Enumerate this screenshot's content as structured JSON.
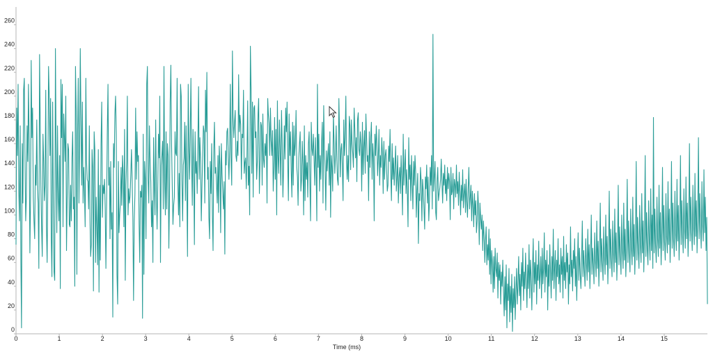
{
  "chart_data": {
    "type": "line",
    "title": "",
    "xlabel": "Time (ms)",
    "ylabel": "",
    "xlim": [
      0,
      16
    ],
    "ylim": [
      0,
      275
    ],
    "x_ticks": [
      "0",
      "1",
      "2",
      "3",
      "4",
      "5",
      "6",
      "7",
      "8",
      "9",
      "10",
      "11",
      "12",
      "13",
      "14",
      "15"
    ],
    "y_ticks": [
      "0",
      "20",
      "40",
      "60",
      "80",
      "100",
      "120",
      "140",
      "160",
      "180",
      "200",
      "220",
      "240",
      "260"
    ],
    "grid": false,
    "legend": "none",
    "colors": {
      "line": "#2a9d97",
      "axis": "#b4b4b4",
      "text": "#222222"
    },
    "series": [
      {
        "x_start": 0,
        "x_step": 0.016,
        "values": [
          75,
          190,
          150,
          210,
          120,
          95,
          175,
          60,
          5,
          160,
          110,
          205,
          215,
          150,
          95,
          115,
          175,
          145,
          210,
          160,
          68,
          115,
          230,
          165,
          190,
          115,
          95,
          80,
          142,
          125,
          180,
          122,
          110,
          55,
          235,
          175,
          125,
          90,
          65,
          168,
          145,
          112,
          125,
          205,
          90,
          60,
          125,
          225,
          200,
          150,
          198,
          80,
          48,
          195,
          110,
          52,
          45,
          240,
          150,
          85,
          175,
          115,
          95,
          150,
          38,
          214,
          165,
          210,
          90,
          185,
          165,
          145,
          200,
          70,
          115,
          160,
          155,
          92,
          90,
          125,
          95,
          148,
          170,
          105,
          115,
          40,
          225,
          188,
          50,
          168,
          215,
          110,
          162,
          240,
          180,
          125,
          195,
          110,
          140,
          120,
          90,
          215,
          145,
          130,
          128,
          105,
          175,
          95,
          65,
          75,
          155,
          140,
          36,
          170,
          155,
          60,
          115,
          90,
          58,
          155,
          35,
          125,
          62,
          160,
          195,
          98,
          125,
          118,
          130,
          105,
          55,
          110,
          170,
          210,
          125,
          140,
          80,
          145,
          88,
          102,
          14,
          160,
          140,
          185,
          200,
          168,
          50,
          25,
          145,
          85,
          100,
          110,
          140,
          108,
          150,
          135,
          90,
          172,
          45,
          125,
          145,
          200,
          100,
          122,
          110,
          116,
          133,
          155,
          130,
          98,
          28,
          95,
          118,
          190,
          130,
          170,
          145,
          150,
          92,
          60,
          120,
          115,
          125,
          13,
          168,
          50,
          145,
          130,
          80,
          210,
          225,
          130,
          110,
          175,
          145,
          128,
          90,
          112,
          60,
          165,
          125,
          100,
          180,
          120,
          88,
          125,
          168,
          148,
          200,
          60,
          142,
          150,
          162,
          105,
          225,
          128,
          100,
          170,
          105,
          160,
          150,
          72,
          112,
          195,
          226,
          160,
          124,
          92,
          108,
          115,
          170,
          152,
          150,
          215,
          128,
          100,
          135,
          90,
          210,
          200,
          130,
          95,
          142,
          148,
          178,
          112,
          175,
          125,
          65,
          210,
          158,
          130,
          168,
          215,
          145,
          108,
          172,
          140,
          75,
          170,
          135,
          145,
          118,
          160,
          208,
          130,
          165,
          145,
          95,
          125,
          150,
          175,
          170,
          110,
          205,
          170,
          220,
          130,
          140,
          98,
          80,
          145,
          118,
          160,
          100,
          70,
          155,
          178,
          135,
          140,
          125,
          110,
          150,
          102,
          158,
          142,
          85,
          160,
          135,
          120,
          105,
          128,
          67,
          154,
          142,
          170,
          173,
          148,
          130,
          155,
          210,
          148,
          125,
          238,
          182,
          165,
          178,
          188,
          150,
          145,
          162,
          150,
          218,
          170,
          184,
          176,
          130,
          168,
          165,
          205,
          135,
          144,
          148,
          122,
          150,
          196,
          125,
          141,
          100,
          242,
          205,
          135,
          195,
          115,
          190,
          192,
          165,
          170,
          130,
          145,
          185,
          198,
          118,
          145,
          178,
          175,
          125,
          185,
          147,
          140,
          160,
          150,
          168,
          110,
          198,
          185,
          177,
          150,
          190,
          163,
          150,
          171,
          120,
          140,
          182,
          130,
          172,
          100,
          196,
          150,
          135,
          180,
          155,
          125,
          188,
          160,
          115,
          140,
          175,
          147,
          190,
          170,
          195,
          145,
          112,
          185,
          150,
          170,
          138,
          115,
          178,
          125,
          175,
          150,
          160,
          188,
          140,
          132,
          108,
          148,
          160,
          170,
          120,
          130,
          162,
          142,
          100,
          175,
          112,
          150,
          130,
          144,
          115,
          160,
          170,
          128,
          95,
          178,
          156,
          150,
          168,
          148,
          125,
          165,
          140,
          95,
          210,
          140,
          168,
          120,
          150,
          130,
          162,
          178,
          110,
          192,
          155,
          140,
          104,
          154,
          137,
          150,
          160,
          125,
          170,
          98,
          150,
          140,
          120,
          185,
          162,
          135,
          150,
          175,
          145,
          130,
          125,
          198,
          168,
          132,
          155,
          160,
          140,
          112,
          180,
          150,
          165,
          200,
          145,
          130,
          150,
          128,
          183,
          175,
          138,
          180,
          160,
          152,
          140,
          190,
          172,
          148,
          165,
          128,
          180,
          186,
          155,
          150,
          170,
          160,
          120,
          178,
          134,
          158,
          171,
          135,
          185,
          165,
          145,
          150,
          112,
          170,
          140,
          165,
          178,
          130,
          160,
          148,
          95,
          168,
          150,
          175,
          160,
          133,
          148,
          172,
          125,
          150,
          140,
          165,
          152,
          118,
          162,
          130,
          150,
          155,
          140,
          120,
          125,
          158,
          145,
          172,
          135,
          112,
          160,
          130,
          148,
          125,
          140,
          158,
          120,
          130,
          150,
          110,
          132,
          140,
          118,
          150,
          130,
          100,
          168,
          125,
          140,
          155,
          118,
          138,
          120,
          90,
          165,
          130,
          142,
          112,
          150,
          128,
          105,
          145,
          125,
          150,
          136,
          98,
          120,
          135,
          76,
          118,
          112,
          140,
          128,
          95,
          130,
          120,
          105,
          88,
          132,
          122,
          142,
          110,
          132,
          95,
          112,
          140,
          125,
          150,
          105,
          252,
          120,
          132,
          145,
          102,
          96,
          128,
          140,
          112,
          118,
          123,
          130,
          147,
          128,
          110,
          135,
          125,
          142,
          118,
          130,
          112,
          140,
          122,
          135,
          128,
          96,
          140,
          117,
          120,
          135,
          105,
          130,
          125,
          115,
          142,
          118,
          128,
          108,
          136,
          120,
          100,
          125,
          112,
          138,
          106,
          118,
          126,
          102,
          130,
          112,
          98,
          122,
          140,
          105,
          115,
          125,
          95,
          120,
          108,
          90,
          118,
          100,
          112,
          85,
          95,
          120,
          105,
          75,
          110,
          98,
          88,
          100,
          70,
          95,
          82,
          60,
          78,
          90,
          58,
          75,
          62,
          88,
          50,
          80,
          42,
          70,
          60,
          35,
          65,
          38,
          72,
          55,
          48,
          68,
          30,
          60,
          45,
          58,
          25,
          52,
          40,
          62,
          35,
          15,
          48,
          20,
          58,
          5,
          42,
          28,
          55,
          10,
          40,
          18,
          50,
          2,
          38,
          22,
          48,
          12,
          35,
          55,
          25,
          42,
          65,
          32,
          50,
          20,
          60,
          40,
          72,
          28,
          52,
          38,
          68,
          45,
          22,
          58,
          38,
          75,
          30,
          62,
          48,
          20,
          55,
          80,
          35,
          60,
          42,
          70,
          25,
          58,
          45,
          78,
          38,
          50,
          65,
          30,
          72,
          42,
          55,
          85,
          35,
          62,
          48,
          70,
          20,
          58,
          40,
          75,
          52,
          30,
          65,
          45,
          88,
          38,
          55,
          70,
          28,
          62,
          48,
          80,
          42,
          58,
          35,
          72,
          50,
          65,
          30,
          82,
          45,
          60,
          38,
          75,
          52,
          68,
          25,
          58,
          42,
          90,
          48,
          62,
          36,
          70,
          55,
          80,
          40,
          65,
          28,
          58,
          85,
          45,
          72,
          50,
          38,
          62,
          95,
          48,
          70,
          55,
          40,
          80,
          60,
          45,
          88,
          52,
          75,
          38,
          65,
          100,
          50,
          72,
          58,
          42,
          85,
          62,
          48,
          95,
          55,
          78,
          40,
          68,
          110,
          52,
          80,
          60,
          45,
          90,
          65,
          50,
          100,
          58,
          82,
          42,
          70,
          120,
          55,
          88,
          62,
          48,
          95,
          68,
          52,
          105,
          60,
          85,
          45,
          72,
          125,
          58,
          90,
          65,
          50,
          100,
          70,
          55,
          110,
          62,
          88,
          48,
          75,
          130,
          60,
          95,
          68,
          52,
          105,
          72,
          58,
          115,
          65,
          92,
          50,
          78,
          145,
          62,
          98,
          70,
          55,
          108,
          75,
          60,
          118,
          68,
          95,
          52,
          80,
          150,
          65,
          102,
          72,
          58,
          112,
          78,
          62,
          122,
          70,
          100,
          55,
          182,
          68,
          105,
          75,
          60,
          115,
          80,
          65,
          125,
          72,
          102,
          58,
          85,
          140,
          70,
          108,
          78,
          62,
          118,
          82,
          68,
          128,
          75,
          105,
          60,
          88,
          145,
          72,
          110,
          80,
          65,
          120,
          85,
          70,
          130,
          78,
          108,
          62,
          90,
          150,
          75,
          112,
          82,
          68,
          122,
          88,
          72,
          132,
          80,
          110,
          65,
          92,
          160,
          78,
          115,
          85,
          70,
          125,
          90,
          75,
          135,
          82,
          112,
          68,
          95,
          165,
          80,
          118,
          88,
          72,
          128,
          92,
          78,
          138,
          85,
          115,
          70,
          98,
          25
        ]
      }
    ]
  },
  "chart_area_label": "line-chart"
}
